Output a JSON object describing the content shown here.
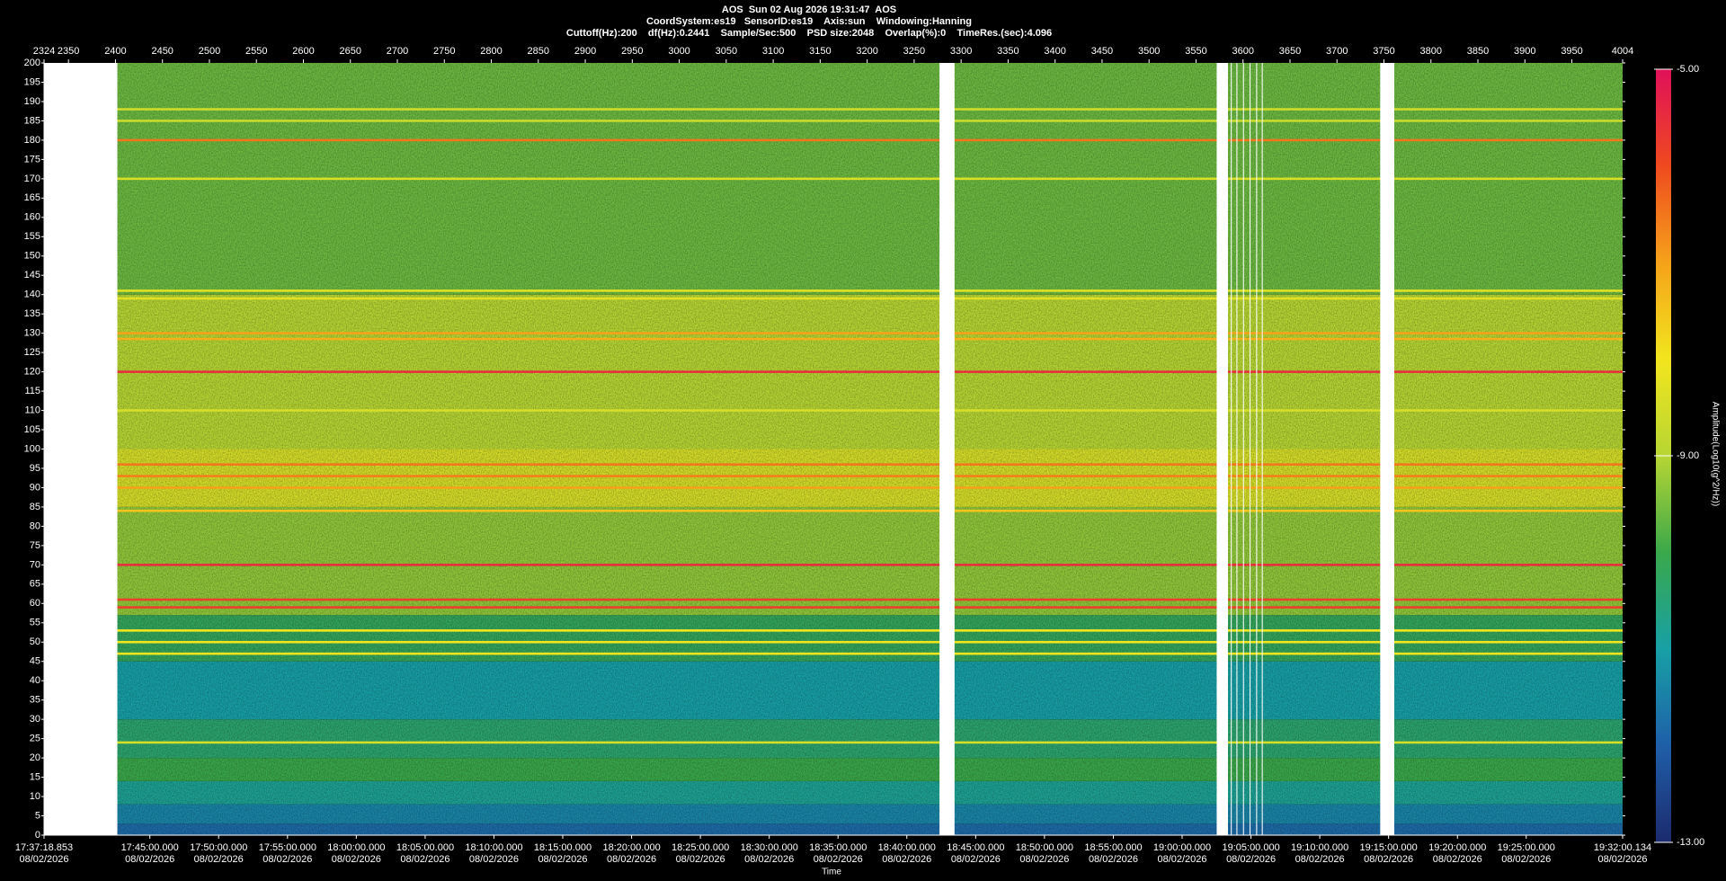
{
  "chart_data": {
    "type": "spectrogram",
    "title": "AOS  Sun 02 Aug 2026 19:31:47  AOS",
    "subtitle": "CoordSystem:es19   SensorID:es19    Axis:sun    Windowing:Hanning",
    "settings_line": "Cuttoff(Hz):200    df(Hz):0.2441    Sample/Sec:500    PSD size:2048    Overlap(%):0    TimeRes.(sec):4.096",
    "x_label": "Time",
    "colorbar_label": "Amplitude(Log10(g^2/Hz))",
    "xlim": [
      2324,
      4004
    ],
    "xticks": [
      2324,
      2350,
      2400,
      2450,
      2500,
      2550,
      2600,
      2650,
      2700,
      2750,
      2800,
      2850,
      2900,
      2950,
      3000,
      3050,
      3100,
      3150,
      3200,
      3250,
      3300,
      3350,
      3400,
      3450,
      3500,
      3550,
      3600,
      3650,
      3700,
      3750,
      3800,
      3850,
      3900,
      3950,
      4004
    ],
    "ylim": [
      0,
      200
    ],
    "yticks": [
      0,
      5,
      10,
      15,
      20,
      25,
      30,
      35,
      40,
      45,
      50,
      55,
      60,
      65,
      70,
      75,
      80,
      85,
      90,
      95,
      100,
      105,
      110,
      115,
      120,
      125,
      130,
      135,
      140,
      145,
      150,
      155,
      160,
      165,
      170,
      175,
      180,
      185,
      190,
      195,
      200
    ],
    "time_ticks": [
      {
        "value": 2324,
        "time": "17:37:18.853",
        "date": "08/02/2026"
      },
      {
        "value": 2436.6,
        "time": "17:45:00.000",
        "date": "08/02/2026"
      },
      {
        "value": 2509.8,
        "time": "17:50:00.000",
        "date": "08/02/2026"
      },
      {
        "value": 2583.1,
        "time": "17:55:00.000",
        "date": "08/02/2026"
      },
      {
        "value": 2656.3,
        "time": "18:00:00.000",
        "date": "08/02/2026"
      },
      {
        "value": 2729.6,
        "time": "18:05:00.000",
        "date": "08/02/2026"
      },
      {
        "value": 2802.8,
        "time": "18:10:00.000",
        "date": "08/02/2026"
      },
      {
        "value": 2876.0,
        "time": "18:15:00.000",
        "date": "08/02/2026"
      },
      {
        "value": 2949.3,
        "time": "18:20:00.000",
        "date": "08/02/2026"
      },
      {
        "value": 3022.5,
        "time": "18:25:00.000",
        "date": "08/02/2026"
      },
      {
        "value": 3095.8,
        "time": "18:30:00.000",
        "date": "08/02/2026"
      },
      {
        "value": 3169.0,
        "time": "18:35:00.000",
        "date": "08/02/2026"
      },
      {
        "value": 3242.2,
        "time": "18:40:00.000",
        "date": "08/02/2026"
      },
      {
        "value": 3315.5,
        "time": "18:45:00.000",
        "date": "08/02/2026"
      },
      {
        "value": 3388.7,
        "time": "18:50:00.000",
        "date": "08/02/2026"
      },
      {
        "value": 3462.0,
        "time": "18:55:00.000",
        "date": "08/02/2026"
      },
      {
        "value": 3535.2,
        "time": "19:00:00.000",
        "date": "08/02/2026"
      },
      {
        "value": 3608.5,
        "time": "19:05:00.000",
        "date": "08/02/2026"
      },
      {
        "value": 3681.7,
        "time": "19:10:00.000",
        "date": "08/02/2026"
      },
      {
        "value": 3754.9,
        "time": "19:15:00.000",
        "date": "08/02/2026"
      },
      {
        "value": 3828.2,
        "time": "19:20:00.000",
        "date": "08/02/2026"
      },
      {
        "value": 3901.4,
        "time": "19:25:00.000",
        "date": "08/02/2026"
      },
      {
        "value": 4004,
        "time": "19:32:00.134",
        "date": "08/02/2026"
      }
    ],
    "zlim": [
      -13,
      -5
    ],
    "zticks": [
      {
        "value": -13,
        "label": "-13.00"
      },
      {
        "value": -9,
        "label": "-9.00"
      },
      {
        "value": -5,
        "label": "-5.00"
      }
    ],
    "colormap": [
      "#1c2a6e",
      "#1f5fa8",
      "#17a0a6",
      "#3aa84a",
      "#b7d633",
      "#f2e51e",
      "#f5a21a",
      "#ef4a1f",
      "#e0105a"
    ],
    "bands": [
      {
        "from": 0,
        "to": 3,
        "value": -11.8
      },
      {
        "from": 3,
        "to": 8,
        "value": -11.4
      },
      {
        "from": 8,
        "to": 14,
        "value": -10.8
      },
      {
        "from": 14,
        "to": 20,
        "value": -10.0
      },
      {
        "from": 20,
        "to": 30,
        "value": -10.4
      },
      {
        "from": 30,
        "to": 45,
        "value": -11.0
      },
      {
        "from": 45,
        "to": 57,
        "value": -10.2
      },
      {
        "from": 57,
        "to": 85,
        "value": -9.3
      },
      {
        "from": 85,
        "to": 100,
        "value": -8.5
      },
      {
        "from": 100,
        "to": 140,
        "value": -9.0
      },
      {
        "from": 140,
        "to": 200,
        "value": -9.6
      }
    ],
    "lines": [
      {
        "freq": 188,
        "value": -8.6
      },
      {
        "freq": 185,
        "value": -8.7
      },
      {
        "freq": 180,
        "value": -6.5
      },
      {
        "freq": 170,
        "value": -8.4
      },
      {
        "freq": 141,
        "value": -8.3
      },
      {
        "freq": 139,
        "value": -8.3
      },
      {
        "freq": 130,
        "value": -7.0
      },
      {
        "freq": 128.5,
        "value": -7.2
      },
      {
        "freq": 120,
        "value": -5.5
      },
      {
        "freq": 110,
        "value": -8.5
      },
      {
        "freq": 96,
        "value": -6.5
      },
      {
        "freq": 93,
        "value": -6.6
      },
      {
        "freq": 90,
        "value": -7.0
      },
      {
        "freq": 84,
        "value": -7.5
      },
      {
        "freq": 70,
        "value": -5.5
      },
      {
        "freq": 61,
        "value": -5.8
      },
      {
        "freq": 59,
        "value": -5.8
      },
      {
        "freq": 53,
        "value": -8.0
      },
      {
        "freq": 50,
        "value": -8.0
      },
      {
        "freq": 47,
        "value": -8.0
      },
      {
        "freq": 24,
        "value": -8.5
      }
    ],
    "gaps": [
      [
        2324,
        2402
      ],
      [
        3277,
        3293
      ],
      [
        3572,
        3584
      ],
      [
        3587,
        3588
      ],
      [
        3593,
        3594
      ],
      [
        3600,
        3601
      ],
      [
        3607,
        3608
      ],
      [
        3614,
        3615
      ],
      [
        3620,
        3621
      ],
      [
        3746,
        3761
      ]
    ]
  }
}
